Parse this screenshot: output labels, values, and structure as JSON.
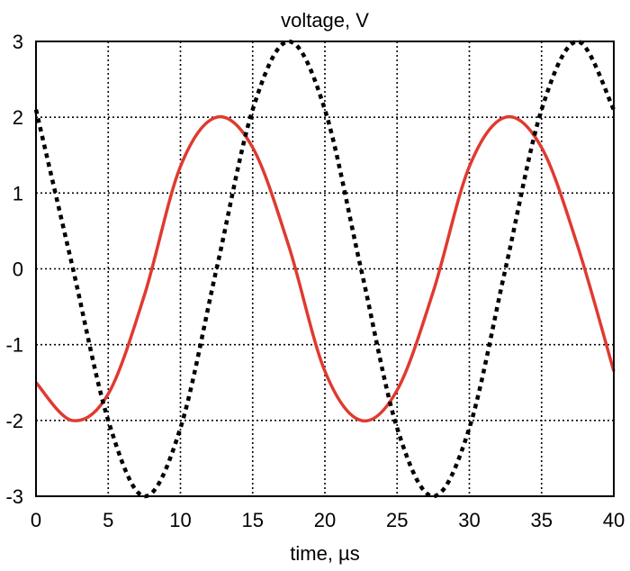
{
  "chart_data": {
    "type": "line",
    "title": "voltage, V",
    "xlabel": "time, µs",
    "ylabel": "",
    "xlim": [
      0,
      40
    ],
    "ylim": [
      -3,
      3
    ],
    "x_ticks": [
      "0",
      "5",
      "10",
      "15",
      "20",
      "25",
      "30",
      "35",
      "40"
    ],
    "y_ticks": [
      "3",
      "2",
      "1",
      "0",
      "-1",
      "-2",
      "-3"
    ],
    "grid": true,
    "legend": "none",
    "series": [
      {
        "style": "solid",
        "color": "#e03a2f",
        "x": [
          0,
          2.5,
          5,
          7.5,
          10,
          12.5,
          15,
          17.5,
          20,
          22.5,
          25,
          27.5,
          30,
          32.5,
          35,
          37.5,
          40
        ],
        "y": [
          -1.5,
          -2.0,
          -1.65,
          -0.35,
          1.35,
          2.0,
          1.6,
          0.3,
          -1.35,
          -2.0,
          -1.6,
          -0.3,
          1.35,
          2.0,
          1.6,
          0.3,
          -1.35
        ]
      },
      {
        "style": "dotted",
        "color": "#000000",
        "x": [
          0,
          2.5,
          5,
          7.5,
          10,
          12.5,
          15,
          17.5,
          20,
          22.5,
          25,
          27.5,
          30,
          32.5,
          35,
          37.5,
          40
        ],
        "y": [
          2.1,
          0.05,
          -2.0,
          -3.0,
          -2.1,
          0.0,
          2.1,
          3.0,
          2.1,
          0.0,
          -2.1,
          -3.0,
          -2.1,
          0.0,
          2.1,
          3.0,
          2.1
        ]
      }
    ]
  }
}
